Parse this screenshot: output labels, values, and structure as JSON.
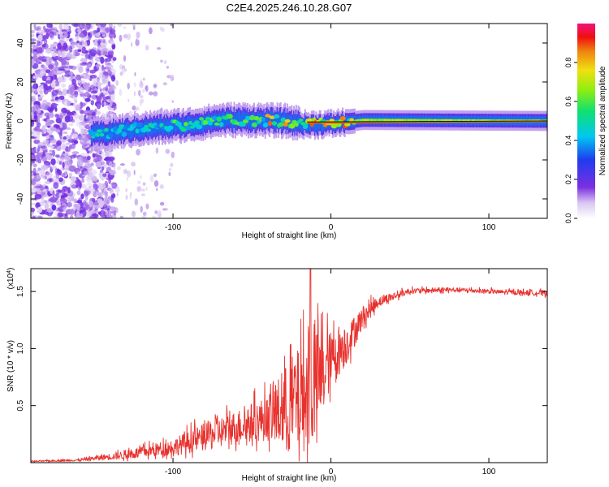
{
  "title": "C2E4.2025.246.10.28.G07",
  "chart_data": [
    {
      "type": "heatmap",
      "title": "C2E4.2025.246.10.28.G07",
      "xlabel": "Height of straight line (km)",
      "ylabel": "Frequency (Hz)",
      "xlim": [
        -190,
        137
      ],
      "ylim": [
        -50,
        50
      ],
      "xticks": [
        -100,
        0,
        100
      ],
      "xtick_labels": [
        "-100",
        "0",
        "100"
      ],
      "yticks": [
        -40,
        -20,
        0,
        20,
        40
      ],
      "ytick_labels": [
        "-40",
        "-20",
        "0",
        "20",
        "40"
      ],
      "colorbar": {
        "label": "Normalized spectral amplitude",
        "range": [
          0,
          1
        ],
        "ticks": [
          0.0,
          0.2,
          0.4,
          0.6,
          0.8
        ],
        "tick_labels": [
          "0.0",
          "0.2",
          "0.4",
          "0.6",
          "0.8"
        ],
        "colormap": "rainbow (white → purple → blue → cyan → green → yellow → red → magenta)"
      },
      "description_of_signal": {
        "noise_region_km": [
          -190,
          -145
        ],
        "ridge_points": [
          {
            "x": -150,
            "y": -7
          },
          {
            "x": -120,
            "y": -4
          },
          {
            "x": -90,
            "y": -2
          },
          {
            "x": -70,
            "y": 0.5
          },
          {
            "x": -50,
            "y": 0.5
          },
          {
            "x": -30,
            "y": 0
          },
          {
            "x": -15,
            "y": -2
          },
          {
            "x": 0,
            "y": -1.5
          },
          {
            "x": 20,
            "y": 0.5
          },
          {
            "x": 137,
            "y": 0
          }
        ]
      }
    },
    {
      "type": "line",
      "xlabel": "Height of straight line (km)",
      "ylabel": "SNR (10 * v/v)",
      "y_multiplier": "(x10",
      "y_multiplier_exp": "4",
      "y_multiplier_close": ")",
      "xlim": [
        -190,
        137
      ],
      "ylim": [
        0,
        1.7
      ],
      "xticks": [
        -100,
        0,
        100
      ],
      "xtick_labels": [
        "-100",
        "0",
        "100"
      ],
      "yticks": [
        0.5,
        1.0,
        1.5
      ],
      "ytick_labels": [
        "0.5",
        "1.0",
        "1.5"
      ],
      "series": [
        {
          "name": "SNR",
          "color": "#e8322e",
          "envelope": [
            {
              "x": -190,
              "base": 0.01,
              "amp": 0.01
            },
            {
              "x": -160,
              "base": 0.02,
              "amp": 0.02
            },
            {
              "x": -130,
              "base": 0.06,
              "amp": 0.08
            },
            {
              "x": -100,
              "base": 0.12,
              "amp": 0.15
            },
            {
              "x": -80,
              "base": 0.2,
              "amp": 0.25
            },
            {
              "x": -60,
              "base": 0.28,
              "amp": 0.3
            },
            {
              "x": -40,
              "base": 0.35,
              "amp": 0.4
            },
            {
              "x": -25,
              "base": 0.4,
              "amp": 0.9
            },
            {
              "x": -10,
              "base": 0.55,
              "amp": 1.0
            },
            {
              "x": 0,
              "base": 0.85,
              "amp": 0.5
            },
            {
              "x": 10,
              "base": 1.0,
              "amp": 0.35
            },
            {
              "x": 20,
              "base": 1.25,
              "amp": 0.2
            },
            {
              "x": 30,
              "base": 1.4,
              "amp": 0.1
            },
            {
              "x": 50,
              "base": 1.5,
              "amp": 0.05
            },
            {
              "x": 80,
              "base": 1.51,
              "amp": 0.04
            },
            {
              "x": 110,
              "base": 1.49,
              "amp": 0.04
            },
            {
              "x": 137,
              "base": 1.48,
              "amp": 0.05
            }
          ],
          "peak": {
            "x": -13,
            "y": 1.7
          }
        }
      ]
    }
  ]
}
